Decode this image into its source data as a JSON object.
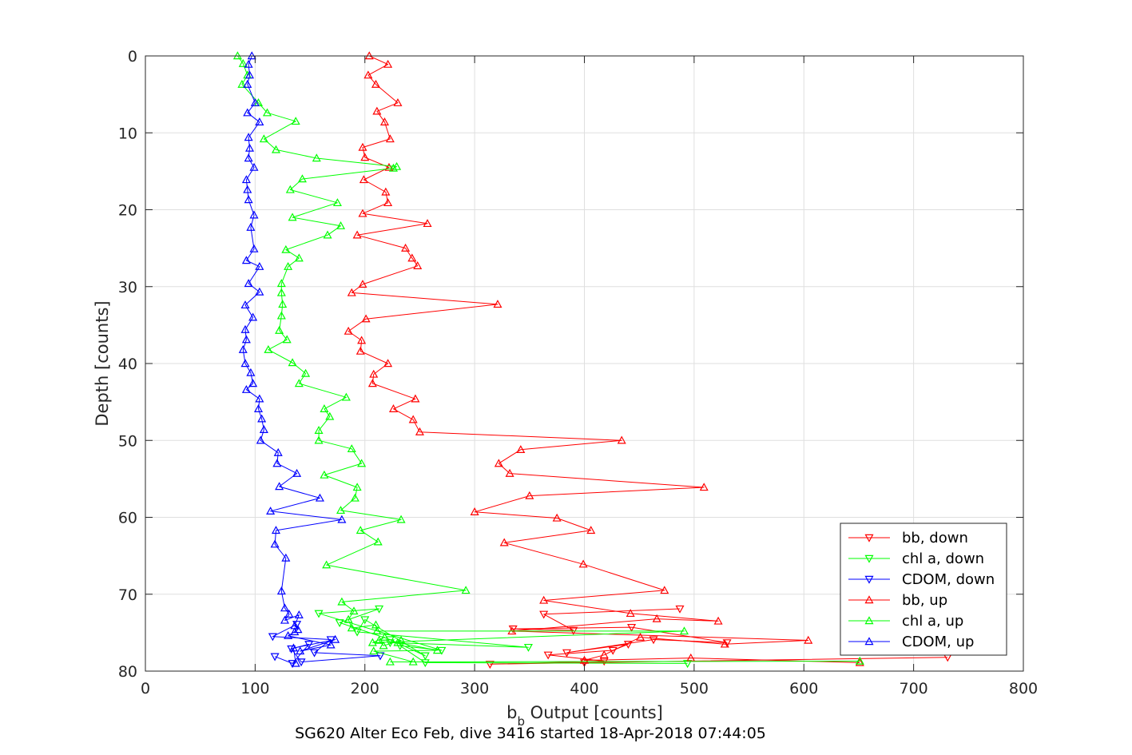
{
  "chart_data": {
    "type": "line",
    "xlabel_main": "b",
    "xlabel_sub": "b",
    "xlabel_rest": " Output [counts]",
    "ylabel": "Depth [counts]",
    "caption": "SG620 Alter Eco Feb, dive 3416 started 18-Apr-2018 07:44:05",
    "xlim": [
      0,
      800
    ],
    "ylim": [
      0,
      80
    ],
    "y_reversed": true,
    "grid": true,
    "legend_position": "bottom-right",
    "xticks": [
      "0",
      "100",
      "200",
      "300",
      "400",
      "500",
      "600",
      "700",
      "800"
    ],
    "yticks": [
      "0",
      "10",
      "20",
      "30",
      "40",
      "50",
      "60",
      "70",
      "80"
    ],
    "series": [
      {
        "name": "bb, down",
        "color": "#ff0000",
        "marker": "triangle-down",
        "x": [
          731,
          400,
          314,
          418,
          367,
          426,
          440,
          384,
          463,
          530,
          443,
          335,
          390,
          363,
          487
        ],
        "y": [
          78.2,
          78.9,
          79.1,
          78.7,
          77.9,
          77.3,
          76.5,
          77.6,
          75.9,
          76.3,
          74.3,
          74.5,
          74.7,
          72.6,
          71.9
        ]
      },
      {
        "name": "chl a, down",
        "color": "#00ff00",
        "marker": "triangle-down",
        "x": [
          494,
          255,
          232,
          270,
          158,
          213,
          177,
          223,
          255,
          200,
          193,
          349,
          223
        ],
        "y": [
          79.0,
          78.9,
          76.7,
          77.3,
          72.5,
          71.9,
          73.7,
          75.9,
          78.0,
          73.3,
          74.9,
          76.9,
          76.3
        ]
      },
      {
        "name": "CDOM, down",
        "color": "#0000ff",
        "marker": "triangle-down",
        "x": [
          118,
          134,
          149,
          133,
          142,
          214,
          154,
          169,
          116,
          138
        ],
        "y": [
          78.1,
          79.0,
          76.5,
          77.1,
          78.8,
          78.0,
          77.6,
          75.9,
          75.5,
          73.9
        ]
      },
      {
        "name": "bb, up",
        "color": "#ff0000",
        "marker": "triangle-up",
        "x": [
          204,
          221,
          203,
          210,
          230,
          211,
          218,
          223,
          198,
          200,
          222,
          199,
          219,
          221,
          198,
          257,
          193,
          237,
          243,
          248,
          198,
          188,
          321,
          201,
          185,
          197,
          196,
          221,
          208,
          207,
          246,
          226,
          244,
          250,
          434,
          342,
          322,
          332,
          509,
          350,
          300,
          375,
          406,
          327,
          399,
          473,
          363,
          442,
          522,
          466,
          334,
          604,
          528,
          451,
          418,
          400,
          497,
          651
        ],
        "y": [
          0.0,
          1.1,
          2.5,
          3.7,
          6.1,
          7.2,
          8.6,
          10.8,
          11.9,
          13.2,
          14.5,
          16.1,
          17.7,
          19.1,
          20.5,
          21.8,
          23.3,
          25.0,
          26.3,
          27.3,
          29.7,
          30.8,
          32.3,
          34.2,
          35.8,
          37.0,
          38.4,
          40.0,
          41.4,
          42.6,
          44.6,
          45.9,
          47.3,
          48.9,
          50.0,
          51.2,
          53.0,
          54.3,
          56.1,
          57.2,
          59.3,
          60.1,
          61.7,
          63.3,
          66.1,
          69.5,
          70.8,
          72.5,
          73.5,
          73.2,
          74.8,
          76.0,
          76.5,
          75.6,
          77.9,
          78.6,
          78.3,
          78.9
        ]
      },
      {
        "name": "chl a, up",
        "color": "#00ff00",
        "marker": "triangle-up",
        "x": [
          84,
          89,
          93,
          88,
          103,
          111,
          137,
          108,
          119,
          156,
          229,
          226,
          143,
          132,
          175,
          134,
          178,
          166,
          128,
          140,
          130,
          124,
          124,
          125,
          124,
          122,
          129,
          112,
          134,
          146,
          140,
          183,
          163,
          168,
          158,
          158,
          188,
          197,
          163,
          193,
          191,
          178,
          233,
          196,
          212,
          165,
          292,
          179,
          190,
          185,
          188,
          210,
          211,
          491,
          207,
          218,
          213,
          217,
          233,
          230,
          266,
          208,
          244,
          651,
          223
        ],
        "y": [
          0.0,
          1.0,
          2.5,
          3.7,
          6.1,
          7.4,
          8.5,
          10.8,
          12.2,
          13.3,
          14.4,
          14.6,
          16.0,
          17.4,
          19.1,
          21.0,
          22.1,
          23.3,
          25.2,
          26.3,
          27.4,
          29.6,
          30.8,
          32.3,
          33.8,
          35.7,
          36.9,
          38.2,
          39.9,
          41.3,
          42.6,
          44.4,
          45.9,
          46.9,
          48.7,
          50.0,
          51.1,
          53.0,
          54.5,
          56.1,
          57.5,
          59.1,
          60.3,
          61.7,
          63.2,
          66.2,
          69.5,
          71.0,
          72.2,
          73.3,
          74.4,
          74.0,
          74.8,
          74.8,
          76.3,
          75.6,
          76.0,
          76.7,
          76.0,
          76.3,
          77.3,
          77.4,
          78.8,
          78.7,
          78.8
        ]
      },
      {
        "name": "CDOM, up",
        "color": "#0000ff",
        "marker": "triangle-up",
        "x": [
          97,
          94,
          95,
          93,
          100,
          93,
          104,
          94,
          95,
          94,
          99,
          92,
          93,
          94,
          99,
          96,
          99,
          92,
          104,
          94,
          104,
          91,
          98,
          91,
          92,
          89,
          91,
          96,
          98,
          92,
          104,
          103,
          106,
          108,
          105,
          121,
          120,
          138,
          122,
          159,
          114,
          179,
          119,
          118,
          128,
          124,
          127,
          131,
          127,
          140,
          136,
          139,
          136,
          130,
          169,
          141,
          173,
          135,
          137
        ],
        "y": [
          0.0,
          1.1,
          2.5,
          3.7,
          6.1,
          7.4,
          8.6,
          10.6,
          12.0,
          13.3,
          14.5,
          16.1,
          17.4,
          18.7,
          20.7,
          22.3,
          25.1,
          26.6,
          27.4,
          29.6,
          30.7,
          32.4,
          34.0,
          35.6,
          36.9,
          38.2,
          40.0,
          41.2,
          42.6,
          43.4,
          44.6,
          45.9,
          47.2,
          48.6,
          50.0,
          51.6,
          53.0,
          54.3,
          56.0,
          57.5,
          59.2,
          60.3,
          61.7,
          63.5,
          65.3,
          69.6,
          71.8,
          72.6,
          73.4,
          72.7,
          74.1,
          74.6,
          74.9,
          75.4,
          76.6,
          77.4,
          75.9,
          77.0,
          79.0
        ]
      }
    ]
  }
}
